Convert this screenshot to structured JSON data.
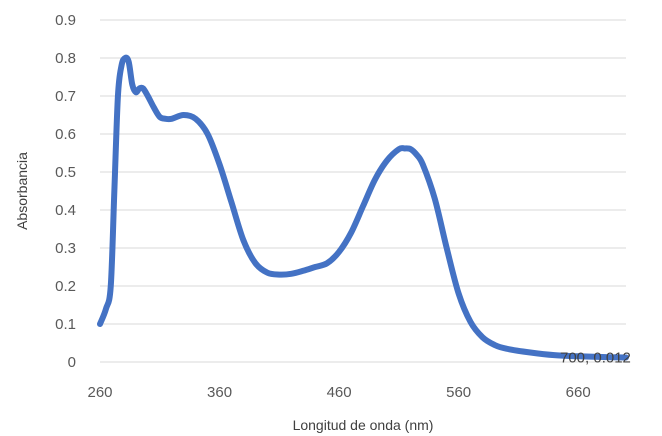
{
  "chart_data": {
    "type": "line",
    "title": "",
    "xlabel": "Longitud de onda (nm)",
    "ylabel": "Absorbancia",
    "xlim": [
      260,
      700
    ],
    "ylim": [
      0,
      0.9
    ],
    "x_ticks": [
      "260",
      "360",
      "460",
      "560",
      "660"
    ],
    "y_ticks": [
      "0",
      "0.1",
      "0.2",
      "0.3",
      "0.4",
      "0.5",
      "0.6",
      "0.7",
      "0.8",
      "0.9"
    ],
    "grid": true,
    "line_color": "#4472C4",
    "series": [
      {
        "x": [
          260,
          265,
          269,
          272,
          275,
          278,
          281,
          284,
          287,
          290,
          293,
          296,
          300,
          305,
          310,
          315,
          320,
          330,
          340,
          350,
          360,
          370,
          380,
          390,
          400,
          410,
          420,
          430,
          440,
          450,
          460,
          470,
          480,
          490,
          500,
          510,
          515,
          520,
          525,
          530,
          540,
          550,
          560,
          570,
          580,
          590,
          600,
          620,
          640,
          660,
          680,
          700
        ],
        "y": [
          0.1,
          0.14,
          0.2,
          0.45,
          0.7,
          0.78,
          0.8,
          0.79,
          0.73,
          0.71,
          0.72,
          0.72,
          0.7,
          0.67,
          0.645,
          0.64,
          0.64,
          0.65,
          0.64,
          0.6,
          0.52,
          0.42,
          0.32,
          0.26,
          0.235,
          0.23,
          0.232,
          0.24,
          0.25,
          0.26,
          0.29,
          0.34,
          0.41,
          0.48,
          0.53,
          0.56,
          0.562,
          0.56,
          0.545,
          0.52,
          0.43,
          0.3,
          0.18,
          0.105,
          0.065,
          0.045,
          0.035,
          0.025,
          0.018,
          0.015,
          0.013,
          0.012
        ]
      }
    ],
    "annotation": "700, 0.012"
  }
}
